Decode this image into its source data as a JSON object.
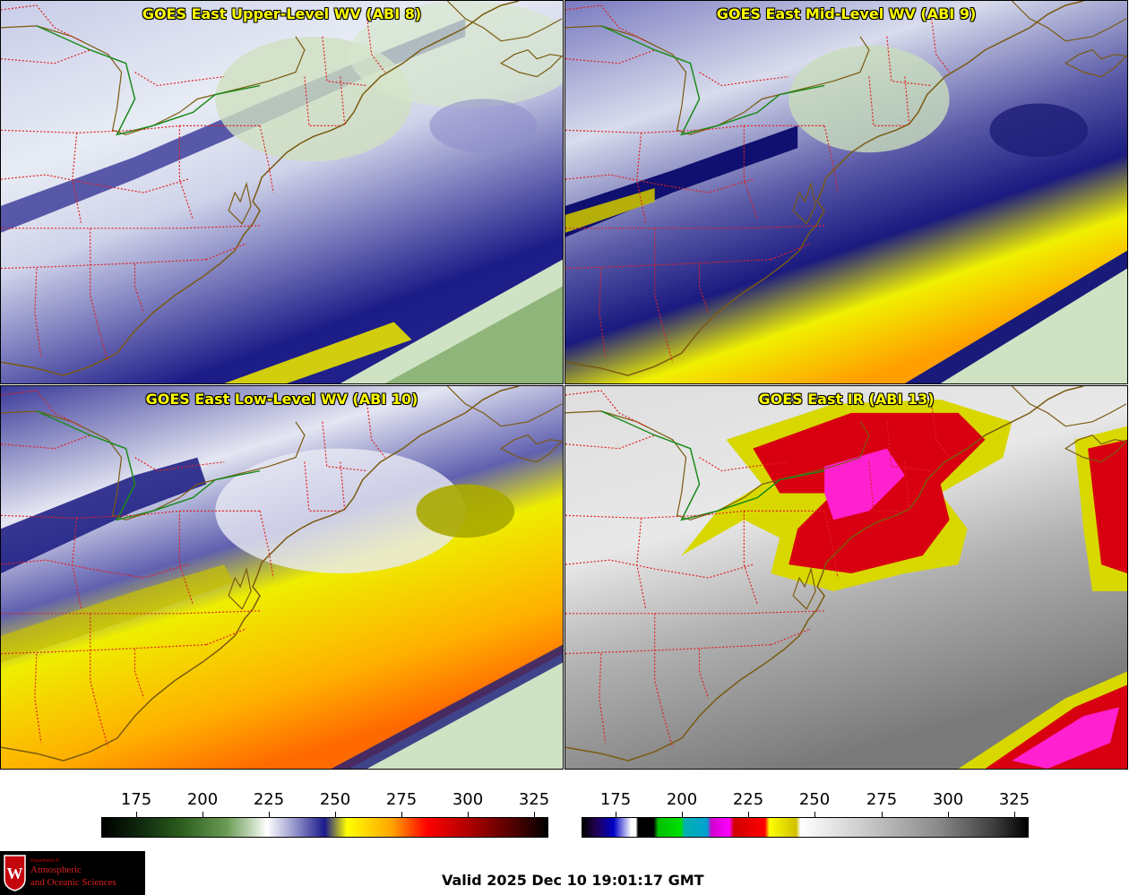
{
  "panels": [
    {
      "title": "GOES East Upper-Level WV (ABI 8)"
    },
    {
      "title": "GOES East Mid-Level WV (ABI 9)"
    },
    {
      "title": "GOES East Low-Level WV (ABI 10)"
    },
    {
      "title": "GOES East IR (ABI 13)"
    }
  ],
  "colorbars": {
    "wv": {
      "ticks": [
        "175",
        "200",
        "225",
        "250",
        "275",
        "300",
        "325"
      ]
    },
    "ir": {
      "ticks": [
        "175",
        "200",
        "225",
        "250",
        "275",
        "300",
        "325"
      ]
    }
  },
  "logo": {
    "department": "Department of",
    "line1": "Atmospheric",
    "line2": "and Oceanic Sciences",
    "letter": "W"
  },
  "valid_time": "Valid 2025 Dec 10 19:01:17 GMT",
  "colors": {
    "title": "#ffff00",
    "state_borders": "#e02020",
    "coastline": "#7a5a10",
    "border_green": "#1a8a1a"
  },
  "icons": {
    "logo": "uw-crest-icon"
  }
}
